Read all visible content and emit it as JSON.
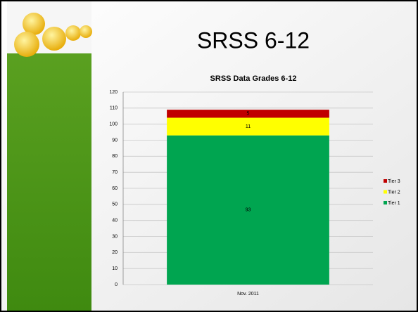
{
  "chart_data": {
    "type": "stacked-bar",
    "slide_title": "SRSS 6-12",
    "title": "SRSS Data Grades 6-12",
    "categories": [
      "Nov. 2011"
    ],
    "series": [
      {
        "name": "Tier 1",
        "color": "#00a550",
        "values": [
          93
        ]
      },
      {
        "name": "Tier 2",
        "color": "#ffff00",
        "values": [
          11
        ]
      },
      {
        "name": "Tier 3",
        "color": "#c00000",
        "values": [
          5
        ]
      }
    ],
    "ylim": [
      0,
      120
    ],
    "yticks": [
      0,
      10,
      20,
      30,
      40,
      50,
      60,
      70,
      80,
      90,
      100,
      110,
      120
    ],
    "grid": true,
    "legend": "right"
  }
}
